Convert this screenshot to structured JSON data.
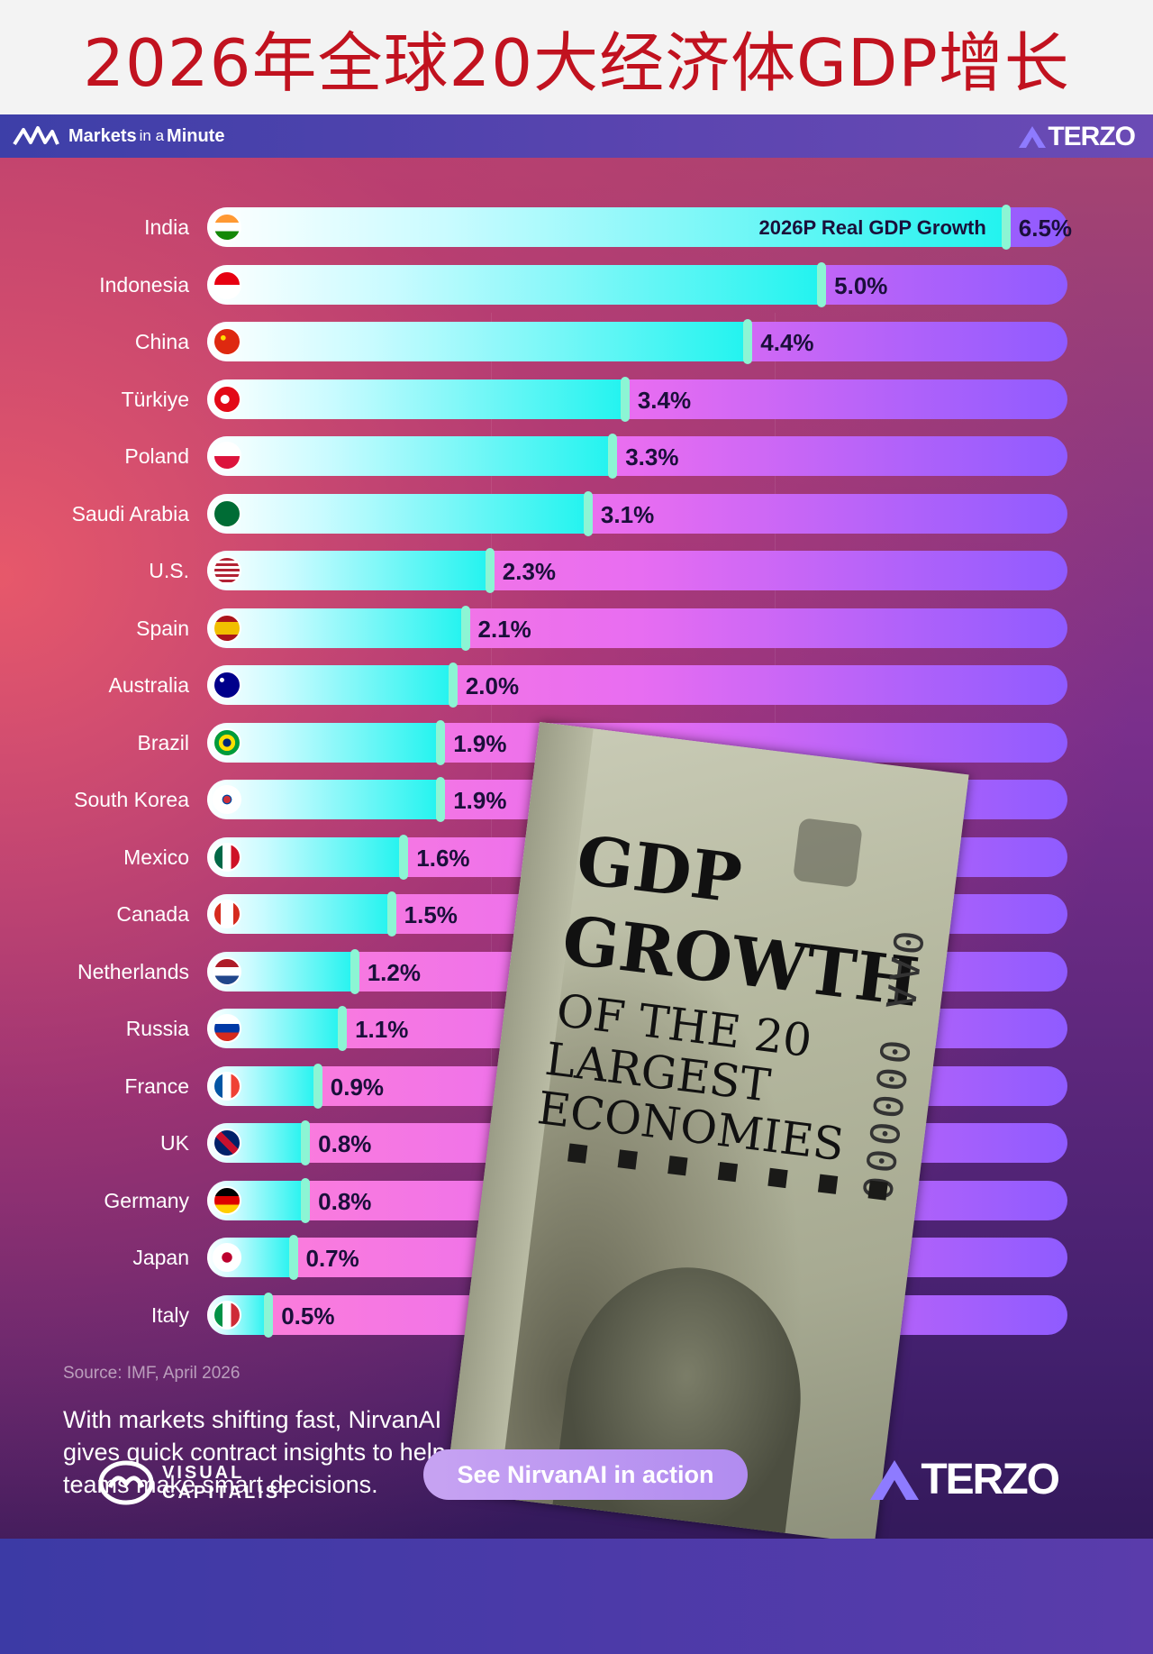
{
  "page_title": "2026年全球20大经济体GDP增长",
  "header": {
    "brand_markets": "Markets",
    "brand_in_a": "in a",
    "brand_minute": "Minute",
    "partner_logo": "TERZO"
  },
  "chart_data": {
    "type": "bar",
    "orientation": "horizontal",
    "series_label": "2026P Real GDP Growth",
    "value_suffix": "%",
    "categories": [
      "India",
      "Indonesia",
      "China",
      "Türkiye",
      "Poland",
      "Saudi Arabia",
      "U.S.",
      "Spain",
      "Australia",
      "Brazil",
      "South Korea",
      "Mexico",
      "Canada",
      "Netherlands",
      "Russia",
      "France",
      "UK",
      "Germany",
      "Japan",
      "Italy"
    ],
    "values": [
      6.5,
      5.0,
      4.4,
      3.4,
      3.3,
      3.1,
      2.3,
      2.1,
      2.0,
      1.9,
      1.9,
      1.6,
      1.5,
      1.2,
      1.1,
      0.9,
      0.8,
      0.8,
      0.7,
      0.5
    ],
    "value_labels": [
      "6.5%",
      "5.0%",
      "4.4%",
      "3.4%",
      "3.3%",
      "3.1%",
      "2.3%",
      "2.1%",
      "2.0%",
      "1.9%",
      "1.9%",
      "1.6%",
      "1.5%",
      "1.2%",
      "1.1%",
      "0.9%",
      "0.8%",
      "0.8%",
      "0.7%",
      "0.5%"
    ],
    "xlim": [
      0,
      7
    ]
  },
  "flags": [
    "india",
    "indonesia",
    "china",
    "turkiye",
    "poland",
    "saudi",
    "us",
    "spain",
    "australia",
    "brazil",
    "korea",
    "mexico",
    "canada",
    "netherlands",
    "russia",
    "france",
    "uk",
    "germany",
    "japan",
    "italy"
  ],
  "source": "Source: IMF, April 2026",
  "blurb": "With markets shifting fast, NirvanAI gives quick contract insights to help teams make smart decisions.",
  "cover": {
    "line1": "GDP",
    "line2": "GROWTH",
    "line3": "OF THE 20",
    "line4": "LARGEST",
    "line5": "ECONOMIES",
    "serial": "0AA 000000"
  },
  "footer": {
    "vc_line1": "VISUAL",
    "vc_line2": "CAPITALIST",
    "cta_label": "See NirvanAI in action",
    "terzo": "TERZO"
  },
  "colors": {
    "title_red": "#c1121f",
    "bar_fill": "#22f3ef",
    "track": "#e86df1"
  }
}
